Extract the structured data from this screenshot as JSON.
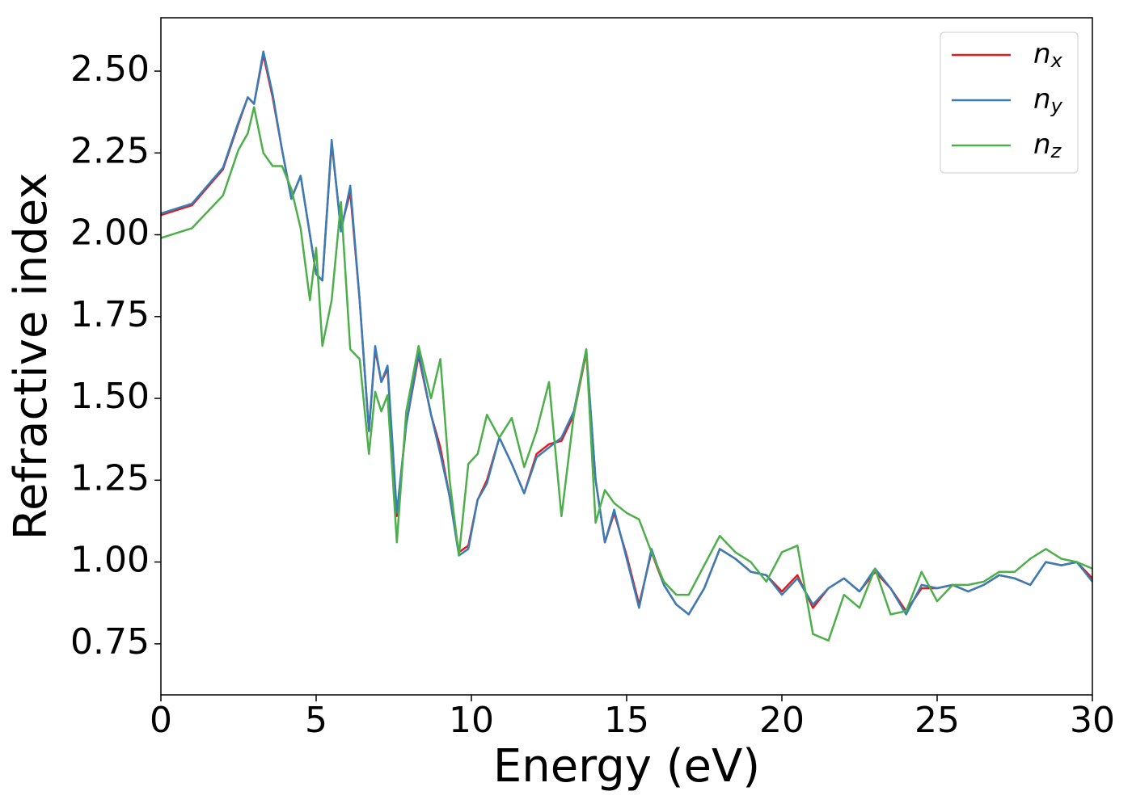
{
  "chart_data": {
    "type": "line",
    "xlabel": "Energy (eV)",
    "ylabel": "Refractive index",
    "x": [
      0,
      1,
      2,
      2.5,
      2.8,
      3.0,
      3.3,
      3.6,
      3.9,
      4.2,
      4.5,
      4.8,
      5.0,
      5.2,
      5.5,
      5.8,
      6.1,
      6.4,
      6.7,
      6.9,
      7.1,
      7.3,
      7.6,
      7.9,
      8.3,
      8.7,
      9.0,
      9.3,
      9.6,
      9.9,
      10.2,
      10.5,
      10.9,
      11.3,
      11.7,
      12.1,
      12.5,
      12.9,
      13.3,
      13.7,
      14.0,
      14.3,
      14.6,
      15.0,
      15.4,
      15.8,
      16.2,
      16.6,
      17.0,
      17.5,
      18.0,
      18.5,
      19.0,
      19.5,
      20.0,
      20.5,
      21.0,
      21.5,
      22.0,
      22.5,
      23.0,
      23.5,
      24.0,
      24.5,
      25.0,
      25.5,
      26.0,
      26.5,
      27.0,
      27.5,
      28.0,
      28.5,
      29.0,
      29.5,
      30.0
    ],
    "series": [
      {
        "name": "nx",
        "color": "#e41a1c",
        "values": [
          2.06,
          2.09,
          2.2,
          2.34,
          2.42,
          2.4,
          2.55,
          2.42,
          2.26,
          2.11,
          2.18,
          2.0,
          1.88,
          1.86,
          2.28,
          2.02,
          2.13,
          1.8,
          1.4,
          1.65,
          1.55,
          1.59,
          1.14,
          1.42,
          1.63,
          1.45,
          1.35,
          1.2,
          1.03,
          1.05,
          1.19,
          1.25,
          1.38,
          1.3,
          1.21,
          1.33,
          1.36,
          1.37,
          1.45,
          1.64,
          1.25,
          1.06,
          1.15,
          1.02,
          0.87,
          1.03,
          0.93,
          0.87,
          0.84,
          0.92,
          1.04,
          1.01,
          0.97,
          0.96,
          0.91,
          0.96,
          0.86,
          0.92,
          0.95,
          0.91,
          0.97,
          0.92,
          0.85,
          0.92,
          0.92,
          0.93,
          0.91,
          0.93,
          0.96,
          0.95,
          0.93,
          1.0,
          0.99,
          1.0,
          0.95
        ]
      },
      {
        "name": "ny",
        "color": "#377eb8",
        "values": [
          2.065,
          2.095,
          2.205,
          2.345,
          2.42,
          2.4,
          2.56,
          2.43,
          2.26,
          2.11,
          2.18,
          2.0,
          1.88,
          1.86,
          2.29,
          2.01,
          2.15,
          1.8,
          1.4,
          1.66,
          1.55,
          1.6,
          1.15,
          1.42,
          1.64,
          1.45,
          1.33,
          1.2,
          1.02,
          1.04,
          1.19,
          1.24,
          1.38,
          1.3,
          1.21,
          1.32,
          1.35,
          1.38,
          1.46,
          1.65,
          1.25,
          1.06,
          1.16,
          1.01,
          0.86,
          1.04,
          0.93,
          0.87,
          0.84,
          0.92,
          1.04,
          1.01,
          0.97,
          0.96,
          0.9,
          0.95,
          0.87,
          0.92,
          0.95,
          0.91,
          0.98,
          0.92,
          0.84,
          0.93,
          0.92,
          0.93,
          0.91,
          0.93,
          0.96,
          0.95,
          0.93,
          1.0,
          0.99,
          1.0,
          0.94
        ]
      },
      {
        "name": "nz",
        "color": "#4daf4a",
        "values": [
          1.99,
          2.02,
          2.12,
          2.26,
          2.31,
          2.39,
          2.25,
          2.21,
          2.21,
          2.14,
          2.02,
          1.8,
          1.96,
          1.66,
          1.8,
          2.1,
          1.65,
          1.62,
          1.33,
          1.52,
          1.46,
          1.51,
          1.06,
          1.46,
          1.66,
          1.5,
          1.62,
          1.25,
          1.02,
          1.3,
          1.33,
          1.45,
          1.38,
          1.44,
          1.29,
          1.4,
          1.55,
          1.14,
          1.45,
          1.65,
          1.12,
          1.22,
          1.18,
          1.15,
          1.13,
          1.03,
          0.94,
          0.9,
          0.9,
          0.99,
          1.08,
          1.03,
          1.0,
          0.94,
          1.03,
          1.05,
          0.78,
          0.76,
          0.9,
          0.86,
          0.98,
          0.84,
          0.85,
          0.97,
          0.88,
          0.93,
          0.93,
          0.94,
          0.97,
          0.97,
          1.01,
          1.04,
          1.01,
          1.0,
          0.98
        ]
      }
    ],
    "xlim": [
      0,
      30
    ],
    "ylim": [
      0.594,
      2.663
    ],
    "xticks": [
      0,
      5,
      10,
      15,
      20,
      25,
      30
    ],
    "yticks": [
      0.75,
      {
        "value": 1.0,
        "label": "1.00"
      },
      1.25,
      {
        "value": 1.5,
        "label": "1.50"
      },
      1.75,
      {
        "value": 2.0,
        "label": "2.00"
      },
      2.25,
      {
        "value": 2.5,
        "label": "2.50"
      }
    ],
    "legend": "upper right"
  }
}
